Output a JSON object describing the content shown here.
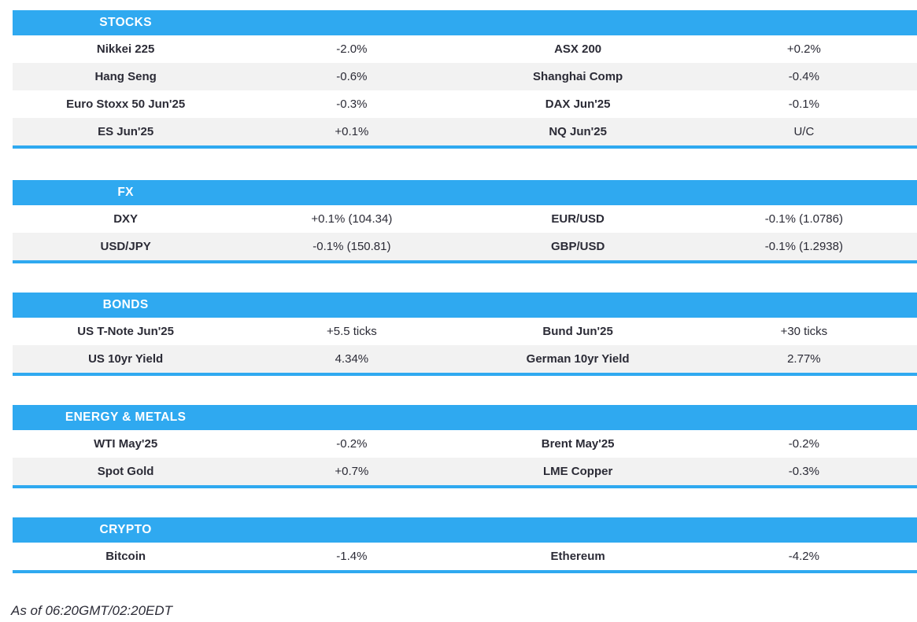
{
  "accent_color": "#2fa9f0",
  "row_alt_color": "#f2f2f2",
  "text_color": "#2b2b36",
  "sections": {
    "stocks": {
      "label": "STOCKS",
      "rows": [
        {
          "l_name": "Nikkei 225",
          "l_value": "-2.0%",
          "r_name": "ASX 200",
          "r_value": "+0.2%"
        },
        {
          "l_name": "Hang Seng",
          "l_value": "-0.6%",
          "r_name": "Shanghai Comp",
          "r_value": "-0.4%"
        },
        {
          "l_name": "Euro Stoxx 50 Jun'25",
          "l_value": "-0.3%",
          "r_name": "DAX Jun'25",
          "r_value": "-0.1%"
        },
        {
          "l_name": "ES Jun'25",
          "l_value": "+0.1%",
          "r_name": "NQ Jun'25",
          "r_value": "U/C"
        }
      ]
    },
    "fx": {
      "label": "FX",
      "rows": [
        {
          "l_name": "DXY",
          "l_value": "+0.1% (104.34)",
          "r_name": "EUR/USD",
          "r_value": "-0.1% (1.0786)"
        },
        {
          "l_name": "USD/JPY",
          "l_value": "-0.1% (150.81)",
          "r_name": "GBP/USD",
          "r_value": "-0.1% (1.2938)"
        }
      ]
    },
    "bonds": {
      "label": "BONDS",
      "rows": [
        {
          "l_name": "US T-Note Jun'25",
          "l_value": "+5.5 ticks",
          "r_name": "Bund Jun'25",
          "r_value": "+30 ticks"
        },
        {
          "l_name": "US 10yr Yield",
          "l_value": "4.34%",
          "r_name": "German 10yr Yield",
          "r_value": "2.77%"
        }
      ]
    },
    "energy_metals": {
      "label": "ENERGY & METALS",
      "rows": [
        {
          "l_name": "WTI May'25",
          "l_value": "-0.2%",
          "r_name": "Brent May'25",
          "r_value": "-0.2%"
        },
        {
          "l_name": "Spot Gold",
          "l_value": "+0.7%",
          "r_name": "LME Copper",
          "r_value": "-0.3%"
        }
      ]
    },
    "crypto": {
      "label": "CRYPTO",
      "rows": [
        {
          "l_name": "Bitcoin",
          "l_value": "-1.4%",
          "r_name": "Ethereum",
          "r_value": "-4.2%"
        }
      ]
    }
  },
  "footer": {
    "as_of": "As of 06:20GMT/02:20EDT"
  }
}
